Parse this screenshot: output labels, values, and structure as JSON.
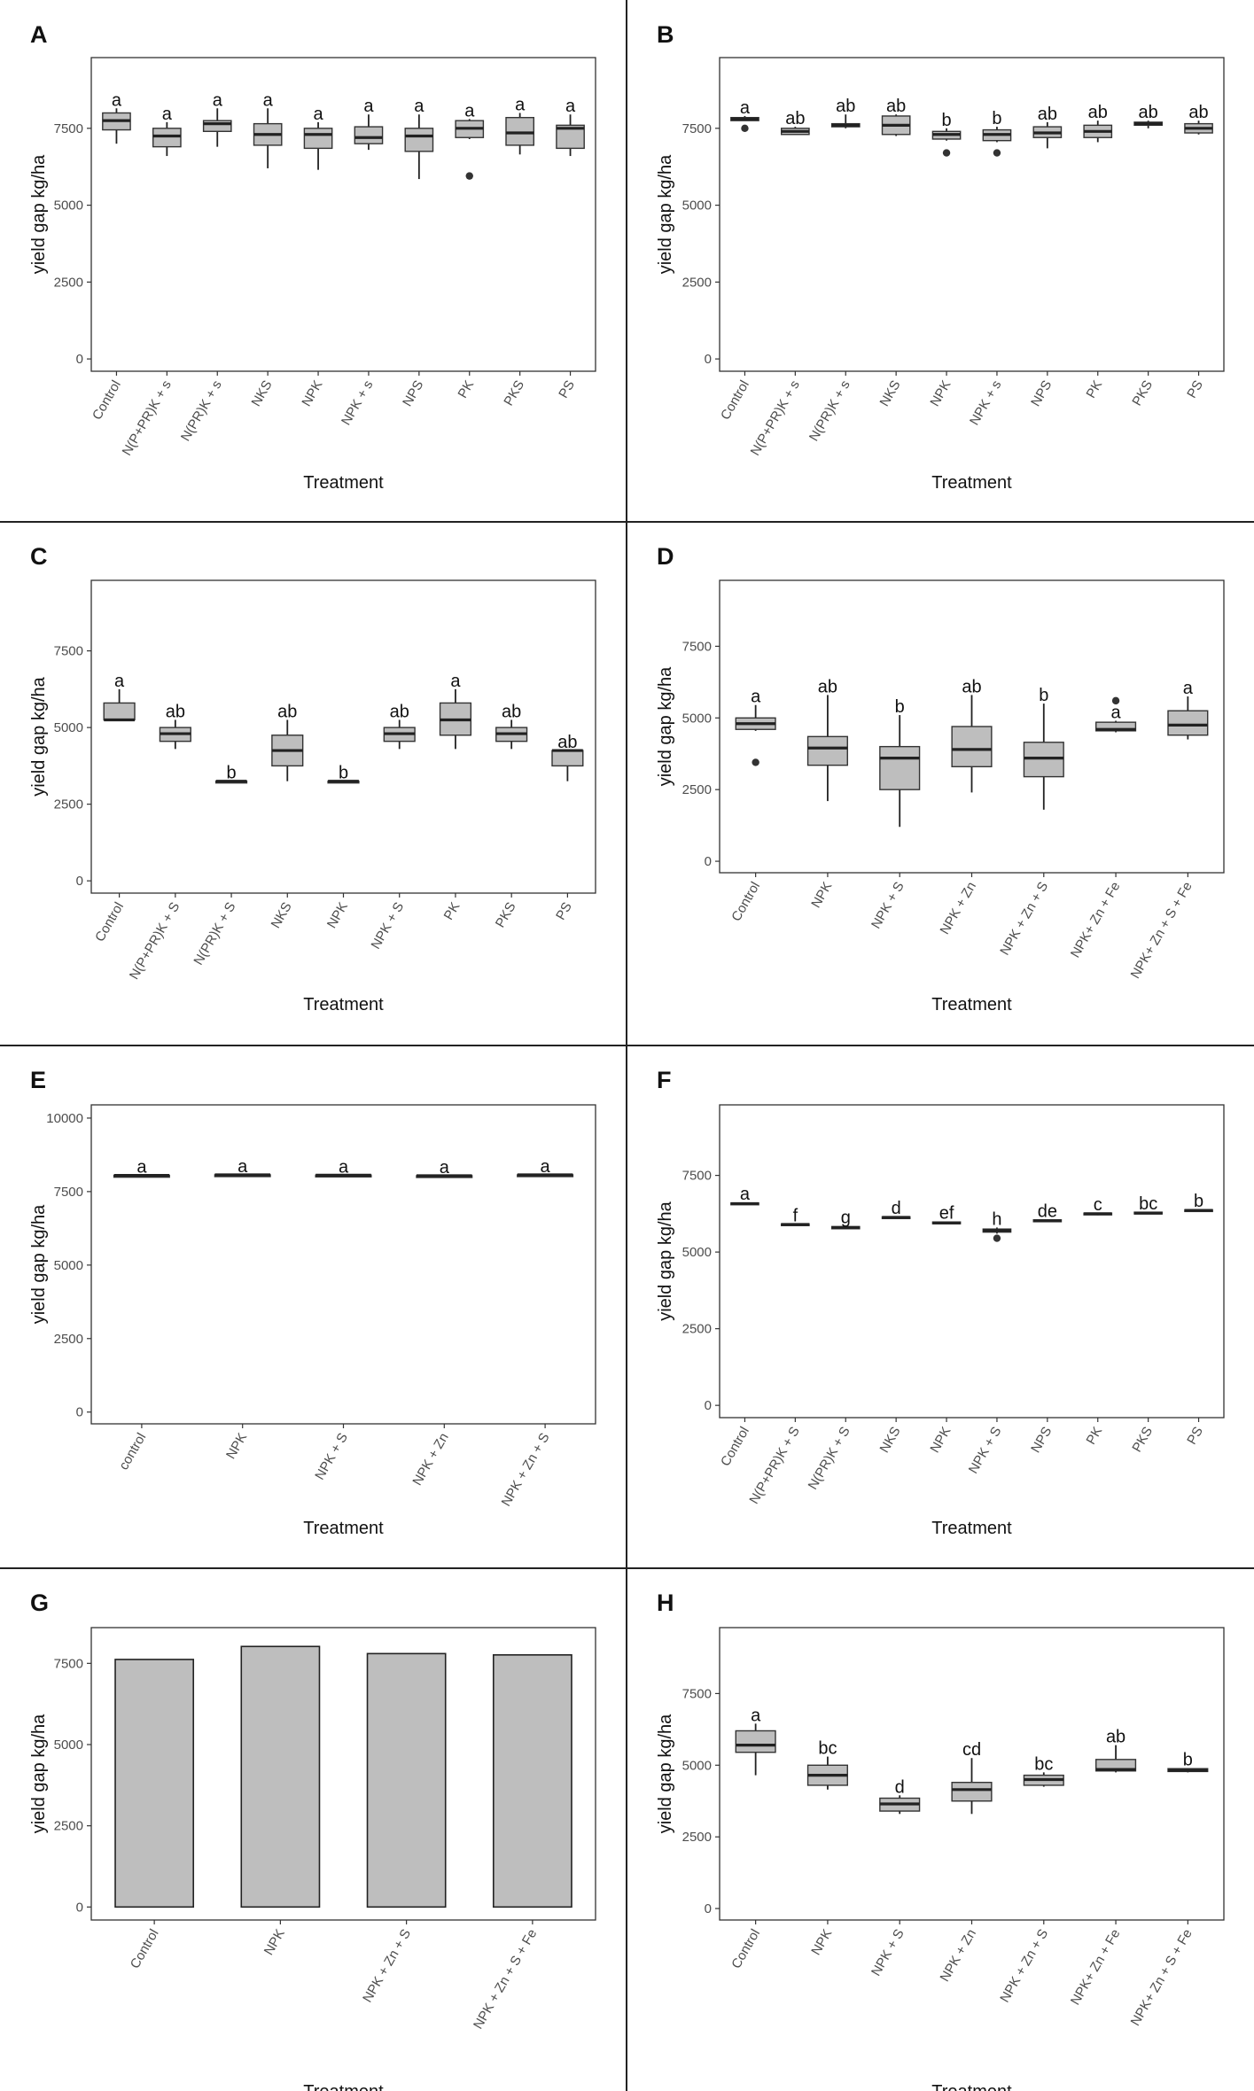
{
  "chart_data": [
    {
      "panel": "A",
      "type": "box",
      "ylabel": "yield gap kg/ha",
      "xlabel": "Treatment",
      "yticks": [
        0,
        2500,
        5000,
        7500
      ],
      "ylim": [
        -400,
        9800
      ],
      "categories": [
        "Control",
        "N(P+PR)K + s",
        "N(PR)K + s",
        "NKS",
        "NPK",
        "NPK + s",
        "NPS",
        "PK",
        "PKS",
        "PS"
      ],
      "boxes": [
        {
          "min": 7000,
          "q1": 7450,
          "median": 7750,
          "q3": 8000,
          "max": 8150,
          "outliers": []
        },
        {
          "min": 6600,
          "q1": 6900,
          "median": 7250,
          "q3": 7500,
          "max": 7700,
          "outliers": []
        },
        {
          "min": 6900,
          "q1": 7400,
          "median": 7650,
          "q3": 7750,
          "max": 8150,
          "outliers": []
        },
        {
          "min": 6200,
          "q1": 6950,
          "median": 7300,
          "q3": 7650,
          "max": 8150,
          "outliers": []
        },
        {
          "min": 6150,
          "q1": 6850,
          "median": 7300,
          "q3": 7500,
          "max": 7700,
          "outliers": []
        },
        {
          "min": 6800,
          "q1": 7000,
          "median": 7200,
          "q3": 7550,
          "max": 7950,
          "outliers": []
        },
        {
          "min": 5850,
          "q1": 6750,
          "median": 7250,
          "q3": 7500,
          "max": 7950,
          "outliers": []
        },
        {
          "min": 7150,
          "q1": 7200,
          "median": 7500,
          "q3": 7750,
          "max": 7800,
          "outliers": [
            5950
          ]
        },
        {
          "min": 6650,
          "q1": 6950,
          "median": 7350,
          "q3": 7850,
          "max": 8000,
          "outliers": []
        },
        {
          "min": 6600,
          "q1": 6850,
          "median": 7500,
          "q3": 7600,
          "max": 7950,
          "outliers": []
        }
      ],
      "letters": [
        "a",
        "a",
        "a",
        "a",
        "a",
        "a",
        "a",
        "a",
        "a",
        "a"
      ]
    },
    {
      "panel": "B",
      "type": "box",
      "ylabel": "yield gap kg/ha",
      "xlabel": "Treatment",
      "yticks": [
        0,
        2500,
        5000,
        7500
      ],
      "ylim": [
        -400,
        9800
      ],
      "categories": [
        "Control",
        "N(P+PR)K + s",
        "N(PR)K + s",
        "NKS",
        "NPK",
        "NPK + s",
        "NPS",
        "PK",
        "PKS",
        "PS"
      ],
      "boxes": [
        {
          "min": 7750,
          "q1": 7750,
          "median": 7800,
          "q3": 7850,
          "max": 7900,
          "outliers": [
            7500
          ]
        },
        {
          "min": 7300,
          "q1": 7300,
          "median": 7400,
          "q3": 7500,
          "max": 7550,
          "outliers": []
        },
        {
          "min": 7500,
          "q1": 7550,
          "median": 7600,
          "q3": 7650,
          "max": 7950,
          "outliers": []
        },
        {
          "min": 7250,
          "q1": 7300,
          "median": 7600,
          "q3": 7900,
          "max": 7950,
          "outliers": []
        },
        {
          "min": 7100,
          "q1": 7150,
          "median": 7300,
          "q3": 7400,
          "max": 7500,
          "outliers": [
            6700
          ]
        },
        {
          "min": 7050,
          "q1": 7100,
          "median": 7300,
          "q3": 7450,
          "max": 7550,
          "outliers": [
            6700
          ]
        },
        {
          "min": 6850,
          "q1": 7200,
          "median": 7350,
          "q3": 7550,
          "max": 7700,
          "outliers": []
        },
        {
          "min": 7050,
          "q1": 7200,
          "median": 7400,
          "q3": 7600,
          "max": 7750,
          "outliers": []
        },
        {
          "min": 7500,
          "q1": 7600,
          "median": 7650,
          "q3": 7700,
          "max": 7750,
          "outliers": []
        },
        {
          "min": 7300,
          "q1": 7350,
          "median": 7500,
          "q3": 7650,
          "max": 7750,
          "outliers": []
        }
      ],
      "letters": [
        "a",
        "ab",
        "ab",
        "ab",
        "b",
        "b",
        "ab",
        "ab",
        "ab",
        "ab"
      ]
    },
    {
      "panel": "C",
      "type": "box",
      "ylabel": "yield gap kg/ha",
      "xlabel": "Treatment",
      "yticks": [
        0,
        2500,
        5000,
        7500
      ],
      "ylim": [
        -400,
        9800
      ],
      "categories": [
        "Control",
        "N(P+PR)K + S",
        "N(PR)K + S",
        "NKS",
        "NPK",
        "NPK + S",
        "PK",
        "PKS",
        "PS"
      ],
      "boxes": [
        {
          "min": 5250,
          "q1": 5250,
          "median": 5250,
          "q3": 5800,
          "max": 6250,
          "outliers": []
        },
        {
          "min": 4300,
          "q1": 4550,
          "median": 4800,
          "q3": 5000,
          "max": 5250,
          "outliers": []
        },
        {
          "min": 3250,
          "q1": 3250,
          "median": 3250,
          "q3": 3250,
          "max": 3250,
          "outliers": []
        },
        {
          "min": 3250,
          "q1": 3750,
          "median": 4250,
          "q3": 4750,
          "max": 5250,
          "outliers": []
        },
        {
          "min": 3250,
          "q1": 3250,
          "median": 3250,
          "q3": 3250,
          "max": 3250,
          "outliers": []
        },
        {
          "min": 4300,
          "q1": 4550,
          "median": 4800,
          "q3": 5000,
          "max": 5250,
          "outliers": []
        },
        {
          "min": 4300,
          "q1": 4750,
          "median": 5250,
          "q3": 5800,
          "max": 6250,
          "outliers": []
        },
        {
          "min": 4300,
          "q1": 4550,
          "median": 4800,
          "q3": 5000,
          "max": 5250,
          "outliers": []
        },
        {
          "min": 3250,
          "q1": 3750,
          "median": 4250,
          "q3": 4250,
          "max": 4250,
          "outliers": []
        }
      ],
      "letters": [
        "a",
        "ab",
        "b",
        "ab",
        "b",
        "ab",
        "a",
        "ab",
        "ab"
      ]
    },
    {
      "panel": "D",
      "type": "box",
      "ylabel": "yield gap kg/ha",
      "xlabel": "Treatment",
      "yticks": [
        0,
        2500,
        5000,
        7500
      ],
      "ylim": [
        -400,
        9800
      ],
      "categories": [
        "Control",
        "NPK",
        "NPK + S",
        "NPK + Zn",
        "NPK + Zn + S",
        "NPK+ Zn + Fe",
        "NPK+ Zn + S + Fe"
      ],
      "boxes": [
        {
          "min": 4550,
          "q1": 4600,
          "median": 4800,
          "q3": 5000,
          "max": 5450,
          "outliers": [
            3450
          ]
        },
        {
          "min": 2100,
          "q1": 3350,
          "median": 3950,
          "q3": 4350,
          "max": 5800,
          "outliers": []
        },
        {
          "min": 1200,
          "q1": 2500,
          "median": 3600,
          "q3": 4000,
          "max": 5100,
          "outliers": []
        },
        {
          "min": 2400,
          "q1": 3300,
          "median": 3900,
          "q3": 4700,
          "max": 5800,
          "outliers": []
        },
        {
          "min": 1800,
          "q1": 2950,
          "median": 3600,
          "q3": 4150,
          "max": 5500,
          "outliers": []
        },
        {
          "min": 4500,
          "q1": 4550,
          "median": 4600,
          "q3": 4850,
          "max": 4900,
          "outliers": [
            5600
          ]
        },
        {
          "min": 4250,
          "q1": 4400,
          "median": 4750,
          "q3": 5250,
          "max": 5750,
          "outliers": []
        }
      ],
      "letters": [
        "a",
        "ab",
        "b",
        "ab",
        "b",
        "a",
        "a"
      ]
    },
    {
      "panel": "E",
      "type": "box",
      "ylabel": "yield gap kg/ha",
      "xlabel": "Treatment",
      "yticks": [
        0,
        2500,
        5000,
        7500,
        10000
      ],
      "ylim": [
        -400,
        10450
      ],
      "categories": [
        "control",
        "NPK",
        "NPK + S",
        "NPK + Zn",
        "NPK + Zn + S"
      ],
      "boxes": [
        {
          "min": 8050,
          "q1": 8050,
          "median": 8050,
          "q3": 8050,
          "max": 8050,
          "outliers": []
        },
        {
          "min": 8070,
          "q1": 8070,
          "median": 8070,
          "q3": 8070,
          "max": 8070,
          "outliers": []
        },
        {
          "min": 8060,
          "q1": 8060,
          "median": 8060,
          "q3": 8060,
          "max": 8060,
          "outliers": []
        },
        {
          "min": 8040,
          "q1": 8040,
          "median": 8040,
          "q3": 8040,
          "max": 8040,
          "outliers": []
        },
        {
          "min": 8070,
          "q1": 8070,
          "median": 8070,
          "q3": 8070,
          "max": 8070,
          "outliers": []
        }
      ],
      "letters": [
        "a",
        "a",
        "a",
        "a",
        "a"
      ]
    },
    {
      "panel": "F",
      "type": "box",
      "ylabel": "yield gap kg/ha",
      "xlabel": "Treatment",
      "yticks": [
        0,
        2500,
        5000,
        7500
      ],
      "ylim": [
        -400,
        9800
      ],
      "categories": [
        "Control",
        "N(P+PR)K + S",
        "N(PR)K + S",
        "NKS",
        "NPK",
        "NPK + S",
        "NPS",
        "PK",
        "PKS",
        "PS"
      ],
      "boxes": [
        {
          "min": 6560,
          "q1": 6560,
          "median": 6580,
          "q3": 6600,
          "max": 6620,
          "outliers": []
        },
        {
          "min": 5880,
          "q1": 5880,
          "median": 5900,
          "q3": 5920,
          "max": 5920,
          "outliers": []
        },
        {
          "min": 5750,
          "q1": 5760,
          "median": 5800,
          "q3": 5830,
          "max": 5850,
          "outliers": []
        },
        {
          "min": 6100,
          "q1": 6110,
          "median": 6130,
          "q3": 6150,
          "max": 6160,
          "outliers": []
        },
        {
          "min": 5920,
          "q1": 5930,
          "median": 5950,
          "q3": 5980,
          "max": 6000,
          "outliers": []
        },
        {
          "min": 5600,
          "q1": 5650,
          "median": 5700,
          "q3": 5750,
          "max": 5800,
          "outliers": [
            5450
          ]
        },
        {
          "min": 5980,
          "q1": 5990,
          "median": 6020,
          "q3": 6050,
          "max": 6060,
          "outliers": []
        },
        {
          "min": 6200,
          "q1": 6220,
          "median": 6250,
          "q3": 6270,
          "max": 6280,
          "outliers": []
        },
        {
          "min": 6240,
          "q1": 6250,
          "median": 6270,
          "q3": 6300,
          "max": 6310,
          "outliers": []
        },
        {
          "min": 6330,
          "q1": 6340,
          "median": 6360,
          "q3": 6380,
          "max": 6390,
          "outliers": []
        }
      ],
      "letters": [
        "a",
        "f",
        "g",
        "d",
        "ef",
        "h",
        "de",
        "c",
        "bc",
        "b"
      ]
    },
    {
      "panel": "G",
      "type": "bar",
      "ylabel": "yield gap kg/ha",
      "xlabel": "Treatment",
      "yticks": [
        0,
        2500,
        5000,
        7500
      ],
      "ylim": [
        -400,
        8600
      ],
      "categories": [
        "Control",
        "NPK",
        "NPK + Zn + S",
        "NPK + Zn + S + Fe"
      ],
      "values": [
        7620,
        8020,
        7800,
        7760
      ]
    },
    {
      "panel": "H",
      "type": "box",
      "ylabel": "yield gap kg/ha",
      "xlabel": "Treatment",
      "yticks": [
        0,
        2500,
        5000,
        7500
      ],
      "ylim": [
        -400,
        9800
      ],
      "categories": [
        "Control",
        "NPK",
        "NPK + S",
        "NPK + Zn",
        "NPK + Zn + S",
        "NPK+ Zn + Fe",
        "NPK+ Zn + S + Fe"
      ],
      "boxes": [
        {
          "min": 4650,
          "q1": 5450,
          "median": 5700,
          "q3": 6200,
          "max": 6450,
          "outliers": []
        },
        {
          "min": 4150,
          "q1": 4300,
          "median": 4650,
          "q3": 5000,
          "max": 5300,
          "outliers": []
        },
        {
          "min": 3300,
          "q1": 3400,
          "median": 3650,
          "q3": 3850,
          "max": 3950,
          "outliers": []
        },
        {
          "min": 3300,
          "q1": 3750,
          "median": 4150,
          "q3": 4400,
          "max": 5250,
          "outliers": []
        },
        {
          "min": 4250,
          "q1": 4300,
          "median": 4500,
          "q3": 4650,
          "max": 4750,
          "outliers": []
        },
        {
          "min": 4750,
          "q1": 4800,
          "median": 4850,
          "q3": 5200,
          "max": 5700,
          "outliers": []
        },
        {
          "min": 4750,
          "q1": 4780,
          "median": 4820,
          "q3": 4880,
          "max": 4900,
          "outliers": []
        }
      ],
      "letters": [
        "a",
        "bc",
        "d",
        "cd",
        "bc",
        "ab",
        "b"
      ]
    }
  ]
}
